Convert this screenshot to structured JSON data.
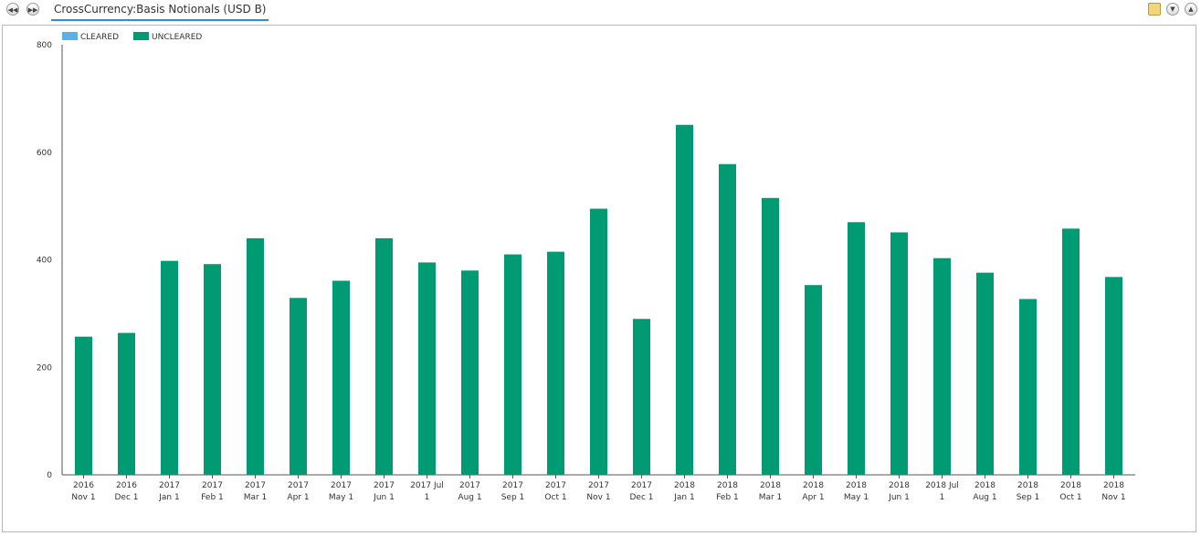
{
  "header": {
    "title": "CrossCurrency:Basis Notionals (USD B)",
    "back_icon": "rewind-icon",
    "forward_icon": "fast-forward-icon"
  },
  "toolbar": {
    "icons": [
      "document-icon",
      "chevron-down-icon",
      "chevron-up-icon"
    ]
  },
  "chart_data": {
    "type": "bar",
    "legend": {
      "placement": "top-left",
      "entries": [
        {
          "name": "CLEARED",
          "color": "#5bb0e8"
        },
        {
          "name": "UNCLEARED",
          "color": "#009b72"
        }
      ]
    },
    "categories": [
      [
        "2016",
        "Nov 1"
      ],
      [
        "2016",
        "Dec 1"
      ],
      [
        "2017",
        "Jan 1"
      ],
      [
        "2017",
        "Feb 1"
      ],
      [
        "2017",
        "Mar 1"
      ],
      [
        "2017",
        "Apr 1"
      ],
      [
        "2017",
        "May 1"
      ],
      [
        "2017",
        "Jun 1"
      ],
      [
        "2017 Jul",
        "1"
      ],
      [
        "2017",
        "Aug 1"
      ],
      [
        "2017",
        "Sep 1"
      ],
      [
        "2017",
        "Oct 1"
      ],
      [
        "2017",
        "Nov 1"
      ],
      [
        "2017",
        "Dec 1"
      ],
      [
        "2018",
        "Jan 1"
      ],
      [
        "2018",
        "Feb 1"
      ],
      [
        "2018",
        "Mar 1"
      ],
      [
        "2018",
        "Apr 1"
      ],
      [
        "2018",
        "May 1"
      ],
      [
        "2018",
        "Jun 1"
      ],
      [
        "2018 Jul",
        "1"
      ],
      [
        "2018",
        "Aug 1"
      ],
      [
        "2018",
        "Sep 1"
      ],
      [
        "2018",
        "Oct 1"
      ],
      [
        "2018",
        "Nov 1"
      ]
    ],
    "series": [
      {
        "name": "CLEARED",
        "color": "#5bb0e8",
        "values": [
          0,
          0,
          0,
          0,
          0,
          0,
          0,
          0,
          0,
          0,
          0,
          0,
          0,
          0,
          0,
          0,
          0,
          0,
          0,
          0,
          0,
          0,
          0,
          0,
          0
        ]
      },
      {
        "name": "UNCLEARED",
        "color": "#009b72",
        "values": [
          257,
          264,
          398,
          392,
          440,
          329,
          361,
          440,
          395,
          380,
          410,
          415,
          495,
          290,
          651,
          578,
          515,
          353,
          470,
          451,
          403,
          376,
          327,
          458,
          368
        ]
      }
    ],
    "ylim": [
      0,
      800
    ],
    "yticks": [
      0,
      200,
      400,
      600,
      800
    ],
    "grid": false,
    "xlabel": "",
    "ylabel": ""
  }
}
